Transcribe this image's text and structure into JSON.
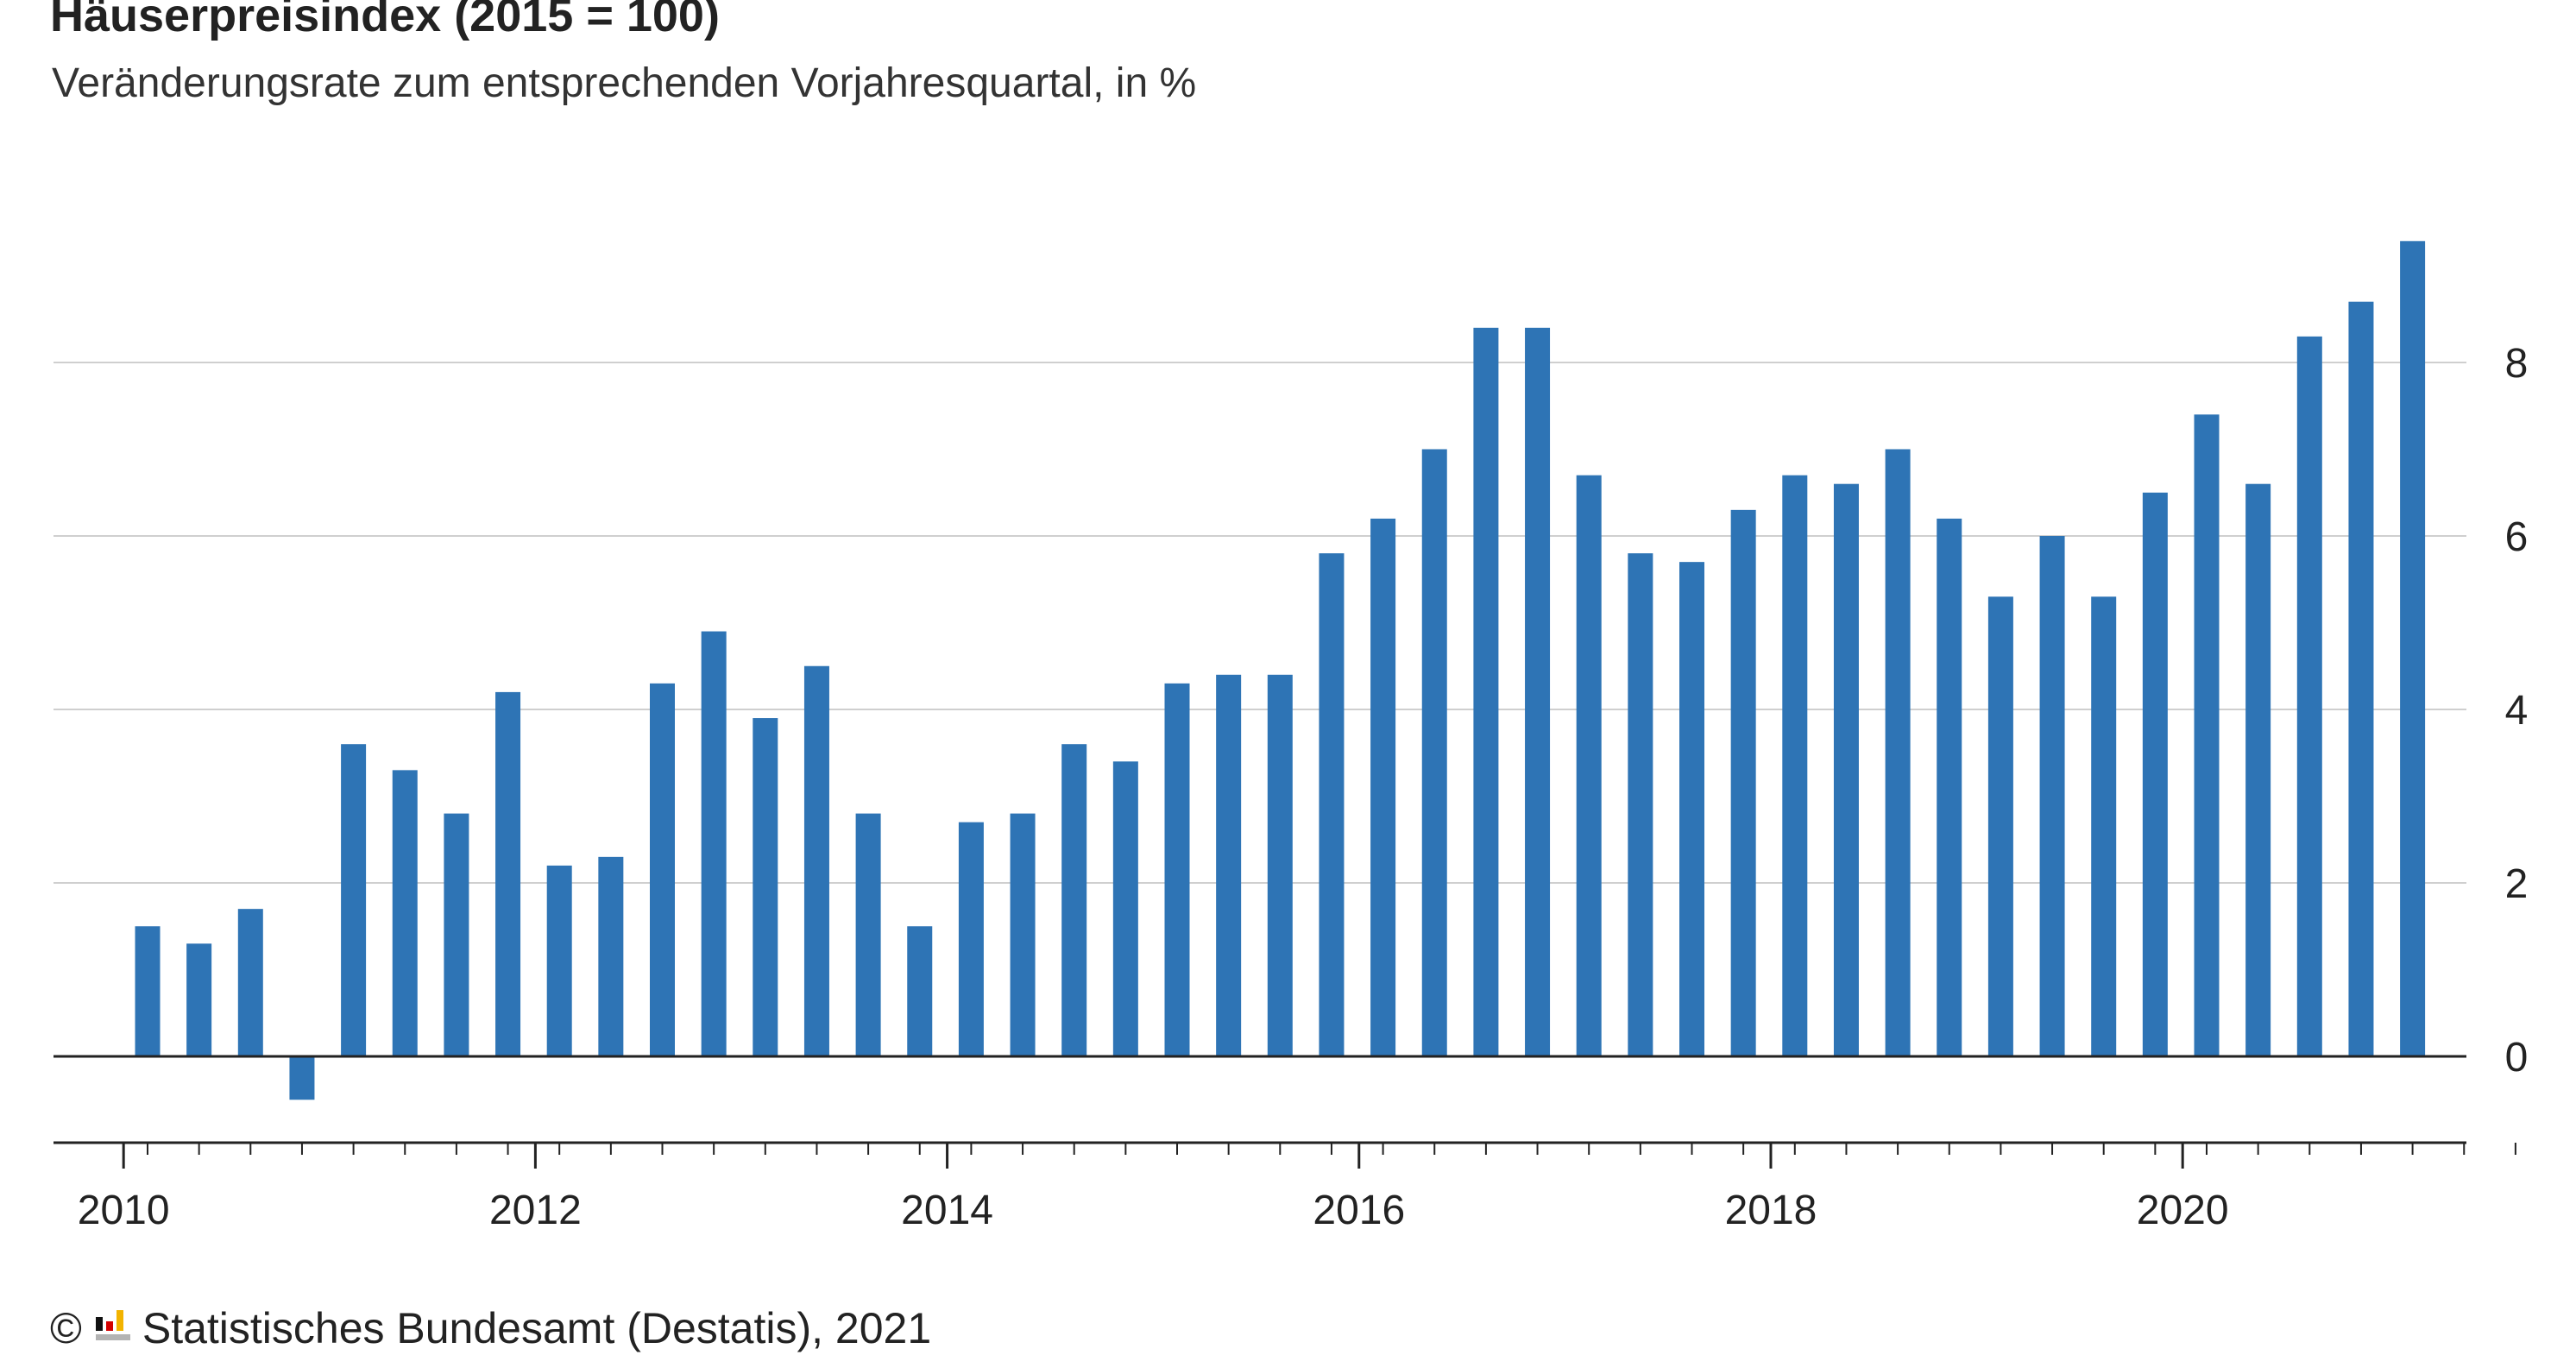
{
  "chart_data": {
    "type": "bar",
    "title": "Häuserpreisindex (2015 = 100)",
    "subtitle": "Veränderungsrate zum entsprechenden Vorjahresquartal, in %",
    "x": [
      "2010 Q1",
      "2010 Q2",
      "2010 Q3",
      "2010 Q4",
      "2011 Q1",
      "2011 Q2",
      "2011 Q3",
      "2011 Q4",
      "2012 Q1",
      "2012 Q2",
      "2012 Q3",
      "2012 Q4",
      "2013 Q1",
      "2013 Q2",
      "2013 Q3",
      "2013 Q4",
      "2014 Q1",
      "2014 Q2",
      "2014 Q3",
      "2014 Q4",
      "2015 Q1",
      "2015 Q2",
      "2015 Q3",
      "2015 Q4",
      "2016 Q1",
      "2016 Q2",
      "2016 Q3",
      "2016 Q4",
      "2017 Q1",
      "2017 Q2",
      "2017 Q3",
      "2017 Q4",
      "2018 Q1",
      "2018 Q2",
      "2018 Q3",
      "2018 Q4",
      "2019 Q1",
      "2019 Q2",
      "2019 Q3",
      "2019 Q4",
      "2020 Q1",
      "2020 Q2",
      "2020 Q3",
      "2020 Q4",
      "2021 Q1",
      "2021 Q2",
      "2021 Q3"
    ],
    "values": [
      1.5,
      1.3,
      1.7,
      -0.5,
      3.6,
      3.3,
      2.8,
      4.2,
      2.2,
      2.3,
      4.3,
      4.9,
      3.9,
      4.5,
      2.8,
      1.5,
      2.7,
      2.8,
      3.6,
      3.4,
      4.3,
      4.4,
      4.4,
      5.8,
      6.2,
      7.0,
      8.4,
      8.4,
      6.7,
      5.8,
      5.7,
      6.3,
      6.7,
      6.6,
      7.0,
      6.2,
      5.3,
      6.0,
      5.3,
      6.5,
      7.4,
      6.6,
      8.3,
      8.7,
      9.4,
      null,
      null
    ],
    "xticks": [
      "2010",
      "2012",
      "2014",
      "2016",
      "2018",
      "2020"
    ],
    "yticks": [
      0,
      2,
      4,
      6,
      8
    ],
    "ylim": [
      -1,
      10
    ],
    "xlabel": "",
    "ylabel": "",
    "y_axis_position": "right",
    "grid": "horizontal",
    "legend": "none",
    "color": "#2e74b5"
  },
  "footer": {
    "copyright": "©",
    "source": "Statistisches Bundesamt (Destatis), 2021",
    "logo_icon": "destatis-logo-icon"
  },
  "colors": {
    "bar": "#2e74b5",
    "grid": "#cfcfcf",
    "axis": "#222222",
    "logo_black": "#111111",
    "logo_red": "#d40000",
    "logo_gold": "#f2b300",
    "logo_gray": "#b3b3b3"
  }
}
